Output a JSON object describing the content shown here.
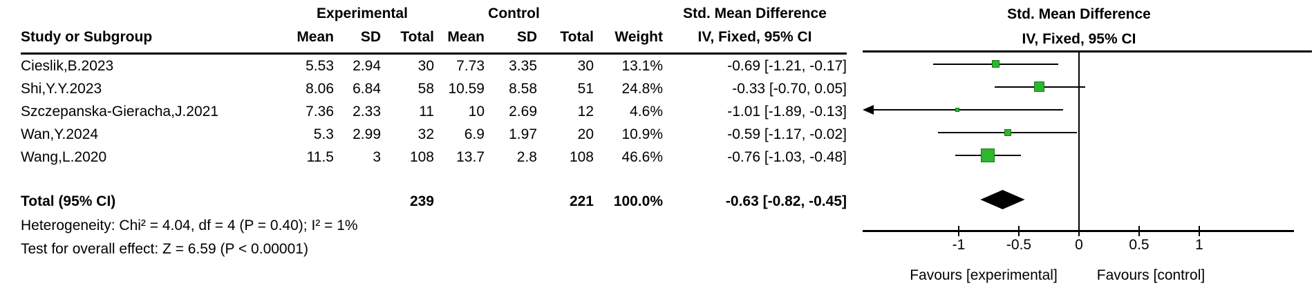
{
  "table": {
    "group_headers": {
      "experimental": "Experimental",
      "control": "Control",
      "smd": "Std. Mean Difference"
    },
    "columns": {
      "study": "Study or Subgroup",
      "mean_exp": "Mean",
      "sd_exp": "SD",
      "total_exp": "Total",
      "mean_ctl": "Mean",
      "sd_ctl": "SD",
      "total_ctl": "Total",
      "weight": "Weight",
      "ci": "IV, Fixed, 95% CI"
    },
    "rows": [
      {
        "study": "Cieslik,B.2023",
        "e_mean": "5.53",
        "e_sd": "2.94",
        "e_total": "30",
        "c_mean": "7.73",
        "c_sd": "3.35",
        "c_total": "30",
        "weight": "13.1%",
        "ci": "-0.69 [-1.21, -0.17]"
      },
      {
        "study": "Shi,Y.Y.2023",
        "e_mean": "8.06",
        "e_sd": "6.84",
        "e_total": "58",
        "c_mean": "10.59",
        "c_sd": "8.58",
        "c_total": "51",
        "weight": "24.8%",
        "ci": "-0.33 [-0.70, 0.05]"
      },
      {
        "study": "Szczepanska-Gieracha,J.2021",
        "e_mean": "7.36",
        "e_sd": "2.33",
        "e_total": "11",
        "c_mean": "10",
        "c_sd": "2.69",
        "c_total": "12",
        "weight": "4.6%",
        "ci": "-1.01 [-1.89, -0.13]"
      },
      {
        "study": "Wan,Y.2024",
        "e_mean": "5.3",
        "e_sd": "2.99",
        "e_total": "32",
        "c_mean": "6.9",
        "c_sd": "1.97",
        "c_total": "20",
        "weight": "10.9%",
        "ci": "-0.59 [-1.17, -0.02]"
      },
      {
        "study": "Wang,L.2020",
        "e_mean": "11.5",
        "e_sd": "3",
        "e_total": "108",
        "c_mean": "13.7",
        "c_sd": "2.8",
        "c_total": "108",
        "weight": "46.6%",
        "ci": "-0.76 [-1.03, -0.48]"
      }
    ],
    "total": {
      "label": "Total (95% CI)",
      "e_total": "239",
      "c_total": "221",
      "weight": "100.0%",
      "ci": "-0.63 [-0.82, -0.45]"
    },
    "heterogeneity": "Heterogeneity: Chi² = 4.04, df = 4 (P = 0.40); I² = 1%",
    "overall_effect": "Test for overall effect: Z = 6.59 (P < 0.00001)"
  },
  "plot": {
    "header_line1": "Std. Mean Difference",
    "header_line2": "IV, Fixed, 95% CI",
    "tick_labels": [
      "-1",
      "-0.5",
      "0",
      "0.5",
      "1"
    ],
    "favours_left": "Favours [experimental]",
    "favours_right": "Favours [control]",
    "colors": {
      "marker_fill": "#2eb62e",
      "marker_border": "#157815",
      "line": "#000000",
      "diamond": "#000000"
    }
  },
  "chart_data": {
    "type": "forest",
    "title": "Std. Mean Difference, IV, Fixed, 95% CI",
    "x_ticks": [
      -1,
      -0.5,
      0,
      0.5,
      1
    ],
    "xlim": [
      -1.79,
      1.8
    ],
    "axis_left_label": "Favours [experimental]",
    "axis_right_label": "Favours [control]",
    "studies": [
      {
        "name": "Cieslik,B.2023",
        "smd": -0.69,
        "ci_low": -1.21,
        "ci_high": -0.17,
        "weight_pct": 13.1
      },
      {
        "name": "Shi,Y.Y.2023",
        "smd": -0.33,
        "ci_low": -0.7,
        "ci_high": 0.05,
        "weight_pct": 24.8
      },
      {
        "name": "Szczepanska-Gieracha,J.2021",
        "smd": -1.01,
        "ci_low": -1.89,
        "ci_high": -0.13,
        "weight_pct": 4.6
      },
      {
        "name": "Wan,Y.2024",
        "smd": -0.59,
        "ci_low": -1.17,
        "ci_high": -0.02,
        "weight_pct": 10.9
      },
      {
        "name": "Wang,L.2020",
        "smd": -0.76,
        "ci_low": -1.03,
        "ci_high": -0.48,
        "weight_pct": 46.6
      }
    ],
    "total": {
      "smd": -0.63,
      "ci_low": -0.82,
      "ci_high": -0.45,
      "total_exp": 239,
      "total_ctl": 221,
      "weight_pct": 100.0
    },
    "heterogeneity": {
      "chi2": 4.04,
      "df": 4,
      "p": 0.4,
      "i2_pct": 1
    },
    "overall_effect": {
      "z": 6.59,
      "p_text": "P < 0.00001"
    }
  }
}
